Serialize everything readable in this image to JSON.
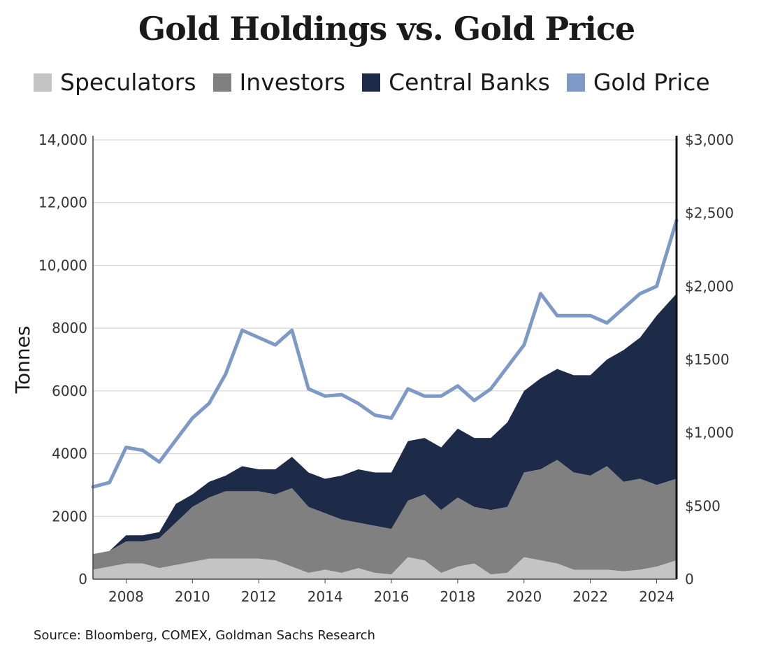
{
  "chart_data": {
    "type": "area",
    "title": "Gold Holdings vs. Gold Price",
    "ylabel": "Tonnes",
    "ylim": [
      0,
      14000
    ],
    "y2lim": [
      0,
      3000
    ],
    "xlim": [
      2007.0,
      2024.6
    ],
    "grid": true,
    "legend_position": "top",
    "y_ticks": [
      "0",
      "2000",
      "4000",
      "6000",
      "8000",
      "10,000",
      "12,000",
      "14,000"
    ],
    "y2_ticks": [
      "0",
      "$500",
      "$1,000",
      "$1500",
      "$2,000",
      "$2,500",
      "$3,000"
    ],
    "x_ticks": [
      "2008",
      "2010",
      "2012",
      "2014",
      "2016",
      "2018",
      "2020",
      "2022",
      "2024"
    ],
    "legend": [
      {
        "name": "Speculators",
        "color": "#c4c4c4"
      },
      {
        "name": "Investors",
        "color": "#808080"
      },
      {
        "name": "Central Banks",
        "color": "#1d2b48"
      },
      {
        "name": "Gold Price",
        "color": "#7d99c6"
      }
    ],
    "x": [
      2007.0,
      2007.5,
      2008.0,
      2008.5,
      2009.0,
      2009.5,
      2010.0,
      2010.5,
      2011.0,
      2011.5,
      2012.0,
      2012.5,
      2013.0,
      2013.5,
      2014.0,
      2014.5,
      2015.0,
      2015.5,
      2016.0,
      2016.5,
      2017.0,
      2017.5,
      2018.0,
      2018.5,
      2019.0,
      2019.5,
      2020.0,
      2020.5,
      2021.0,
      2021.5,
      2022.0,
      2022.5,
      2023.0,
      2023.5,
      2024.0,
      2024.6
    ],
    "series": [
      {
        "name": "Speculators",
        "axis": "left",
        "values": [
          300,
          400,
          500,
          500,
          350,
          450,
          550,
          650,
          650,
          650,
          650,
          600,
          400,
          200,
          300,
          200,
          350,
          200,
          150,
          700,
          600,
          200,
          400,
          500,
          150,
          200,
          700,
          600,
          500,
          300,
          300,
          300,
          250,
          300,
          400,
          600
        ]
      },
      {
        "name": "Investors",
        "axis": "left",
        "values": [
          800,
          900,
          1200,
          1200,
          1300,
          1800,
          2300,
          2600,
          2800,
          2800,
          2800,
          2700,
          2900,
          2300,
          2100,
          1900,
          1800,
          1700,
          1600,
          2500,
          2700,
          2200,
          2600,
          2300,
          2200,
          2300,
          3400,
          3500,
          3800,
          3400,
          3300,
          3600,
          3100,
          3200,
          3000,
          3200
        ]
      },
      {
        "name": "Central Banks",
        "axis": "left",
        "values": [
          800,
          900,
          1400,
          1400,
          1500,
          2400,
          2700,
          3100,
          3300,
          3600,
          3500,
          3500,
          3900,
          3400,
          3200,
          3300,
          3500,
          3400,
          3400,
          4400,
          4500,
          4200,
          4800,
          4500,
          4500,
          5000,
          6000,
          6400,
          6700,
          6500,
          6500,
          7000,
          7300,
          7700,
          8400,
          9100
        ]
      },
      {
        "name": "Gold Price",
        "axis": "right",
        "values": [
          630,
          660,
          900,
          880,
          800,
          950,
          1100,
          1200,
          1400,
          1700,
          1650,
          1600,
          1700,
          1300,
          1250,
          1260,
          1200,
          1120,
          1100,
          1300,
          1250,
          1250,
          1320,
          1220,
          1300,
          1450,
          1600,
          1950,
          1800,
          1800,
          1800,
          1750,
          1850,
          1950,
          2000,
          2450
        ]
      }
    ]
  },
  "source": "Source: Bloomberg, COMEX, Goldman Sachs Research"
}
